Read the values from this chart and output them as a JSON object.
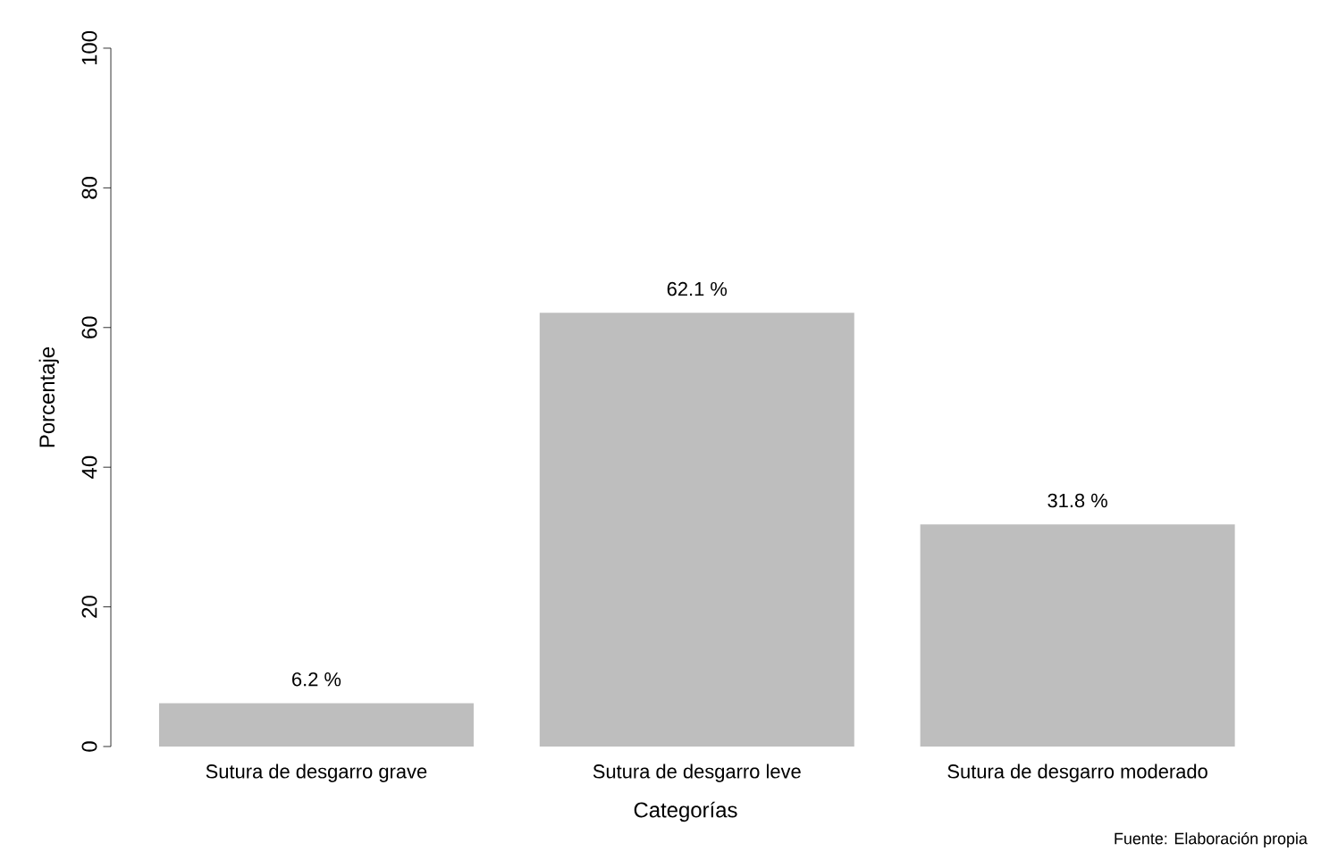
{
  "chart_data": {
    "type": "bar",
    "categories": [
      "Sutura de desgarro grave",
      "Sutura de desgarro leve",
      "Sutura de desgarro moderado"
    ],
    "values": [
      6.2,
      62.1,
      31.8
    ],
    "value_labels": [
      "6.2 %",
      "62.1 %",
      "31.8 %"
    ],
    "color": "#bebebe",
    "xlabel": "Categorías",
    "ylabel": "Porcentaje",
    "ylim": [
      0,
      100
    ],
    "yticks": [
      0,
      20,
      40,
      60,
      80,
      100
    ],
    "grid": false,
    "annotations": [
      "Fuente: Elaboración propia"
    ]
  }
}
